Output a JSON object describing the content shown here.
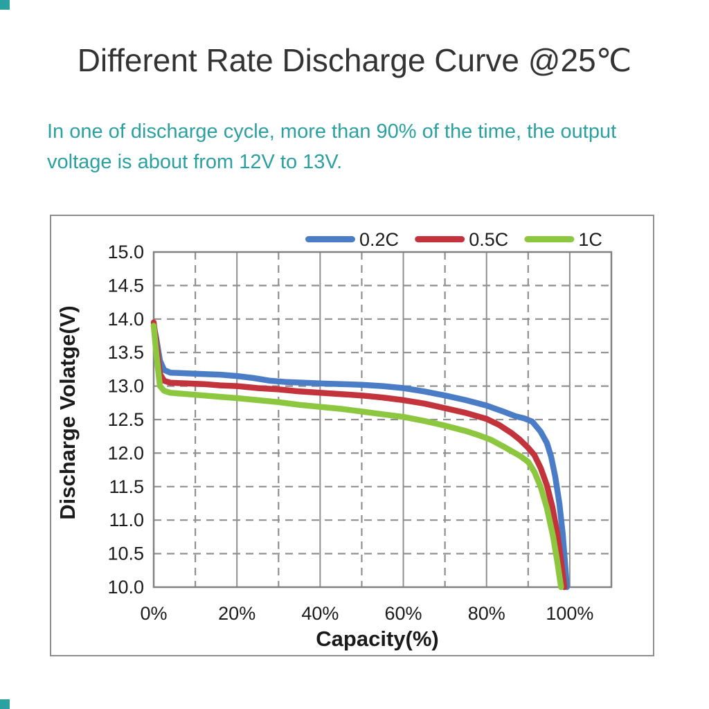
{
  "page": {
    "title": "Different Rate Discharge Curve @25℃",
    "subtitle_line1": "In one of discharge cycle, more than 90% of the time, the output",
    "subtitle_line2": "voltage is about from 12V to 13V.",
    "accent_color": "#2ba0a1"
  },
  "chart_data": {
    "type": "line",
    "title": "Different Rate Discharge Curve @25℃",
    "xlabel": "Capacity(%)",
    "ylabel": "Discharge Volatge(V)",
    "xlim": [
      0,
      110
    ],
    "ylim": [
      10.0,
      15.0
    ],
    "x_major_ticks": [
      0,
      20,
      40,
      60,
      80,
      100
    ],
    "x_minor_ticks": [
      10,
      30,
      50,
      70,
      90
    ],
    "x_tick_labels": [
      "0%",
      "20%",
      "40%",
      "60%",
      "80%",
      "100%"
    ],
    "y_ticks": [
      15.0,
      14.5,
      14.0,
      13.5,
      13.0,
      12.5,
      12.0,
      11.5,
      11.0,
      10.5,
      10.0
    ],
    "y_tick_labels": [
      "15.0",
      "14.5",
      "14.0",
      "13.5",
      "13.0",
      "12.5",
      "12.0",
      "11.5",
      "11.0",
      "10.5",
      "10.0"
    ],
    "grid": "dashed minor lines, solid major verticals",
    "legend_position": "top",
    "colors": {
      "grid": "#8f8f8f",
      "plot_border": "#808080",
      "tick_text": "#1a1a1a"
    },
    "series": [
      {
        "name": "0.2C",
        "color": "#4a7dc5",
        "points": [
          [
            0,
            13.9
          ],
          [
            0.6,
            13.72
          ],
          [
            1.5,
            13.38
          ],
          [
            2.5,
            13.24
          ],
          [
            4,
            13.2
          ],
          [
            8,
            13.19
          ],
          [
            12,
            13.18
          ],
          [
            16,
            13.17
          ],
          [
            20,
            13.15
          ],
          [
            24,
            13.12
          ],
          [
            28,
            13.08
          ],
          [
            32,
            13.06
          ],
          [
            36,
            13.05
          ],
          [
            40,
            13.04
          ],
          [
            45,
            13.03
          ],
          [
            50,
            13.02
          ],
          [
            55,
            13.0
          ],
          [
            60,
            12.97
          ],
          [
            65,
            12.92
          ],
          [
            70,
            12.86
          ],
          [
            75,
            12.79
          ],
          [
            80,
            12.71
          ],
          [
            84,
            12.62
          ],
          [
            87,
            12.55
          ],
          [
            89,
            12.52
          ],
          [
            91,
            12.47
          ],
          [
            93,
            12.32
          ],
          [
            94.5,
            12.15
          ],
          [
            95.5,
            11.95
          ],
          [
            96.5,
            11.65
          ],
          [
            97.5,
            11.25
          ],
          [
            98.3,
            10.8
          ],
          [
            99.0,
            10.25
          ],
          [
            99.3,
            10.0
          ]
        ]
      },
      {
        "name": "0.5C",
        "color": "#c2333c",
        "points": [
          [
            0,
            13.95
          ],
          [
            0.6,
            13.65
          ],
          [
            1.5,
            13.18
          ],
          [
            2.5,
            13.08
          ],
          [
            4,
            13.05
          ],
          [
            8,
            13.04
          ],
          [
            12,
            13.03
          ],
          [
            16,
            13.01
          ],
          [
            20,
            13.0
          ],
          [
            25,
            12.97
          ],
          [
            30,
            12.95
          ],
          [
            35,
            12.92
          ],
          [
            40,
            12.9
          ],
          [
            45,
            12.88
          ],
          [
            50,
            12.86
          ],
          [
            55,
            12.83
          ],
          [
            60,
            12.79
          ],
          [
            65,
            12.74
          ],
          [
            70,
            12.67
          ],
          [
            75,
            12.6
          ],
          [
            80,
            12.51
          ],
          [
            83,
            12.42
          ],
          [
            86,
            12.3
          ],
          [
            88,
            12.2
          ],
          [
            90,
            12.08
          ],
          [
            91.5,
            11.97
          ],
          [
            93,
            11.78
          ],
          [
            94.5,
            11.52
          ],
          [
            95.8,
            11.2
          ],
          [
            97,
            10.8
          ],
          [
            98,
            10.35
          ],
          [
            98.7,
            10.0
          ]
        ]
      },
      {
        "name": "1C",
        "color": "#8dc63f",
        "points": [
          [
            0,
            13.9
          ],
          [
            0.6,
            13.5
          ],
          [
            1.5,
            13.0
          ],
          [
            2.5,
            12.93
          ],
          [
            4,
            12.9
          ],
          [
            8,
            12.88
          ],
          [
            12,
            12.86
          ],
          [
            16,
            12.84
          ],
          [
            20,
            12.82
          ],
          [
            25,
            12.79
          ],
          [
            30,
            12.76
          ],
          [
            35,
            12.72
          ],
          [
            40,
            12.69
          ],
          [
            45,
            12.66
          ],
          [
            50,
            12.62
          ],
          [
            55,
            12.58
          ],
          [
            60,
            12.54
          ],
          [
            65,
            12.48
          ],
          [
            70,
            12.41
          ],
          [
            75,
            12.33
          ],
          [
            78,
            12.27
          ],
          [
            81,
            12.2
          ],
          [
            84,
            12.1
          ],
          [
            86,
            12.03
          ],
          [
            88,
            11.96
          ],
          [
            90,
            11.87
          ],
          [
            91.5,
            11.72
          ],
          [
            93,
            11.5
          ],
          [
            94.5,
            11.18
          ],
          [
            96,
            10.75
          ],
          [
            97,
            10.38
          ],
          [
            97.9,
            10.0
          ]
        ]
      }
    ]
  }
}
